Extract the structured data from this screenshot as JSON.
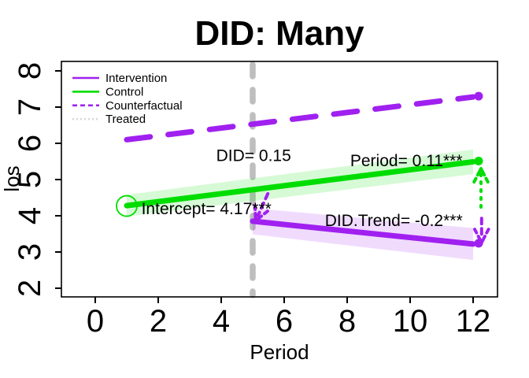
{
  "title": "DID: Many",
  "axes": {
    "x": {
      "label": "Period",
      "ticks": [
        "0",
        "2",
        "4",
        "6",
        "8",
        "10",
        "12"
      ],
      "tick_values": [
        0,
        2,
        4,
        6,
        8,
        10,
        12
      ],
      "range": [
        -0.6,
        12.8
      ]
    },
    "y": {
      "label": "los",
      "ticks": [
        "2",
        "3",
        "4",
        "5",
        "6",
        "7",
        "8"
      ],
      "tick_values": [
        2,
        3,
        4,
        5,
        6,
        7,
        8
      ],
      "range": [
        1.75,
        8.1
      ]
    }
  },
  "legend": {
    "position": "top-left",
    "items": [
      {
        "label": "Intervention",
        "color": "#A020F0",
        "style": "solid"
      },
      {
        "label": "Control",
        "color": "#00DD00",
        "style": "solid"
      },
      {
        "label": "Counterfactual",
        "color": "#A020F0",
        "style": "dashed"
      },
      {
        "label": "Treated",
        "color": "#D8D8D8",
        "style": "dotted"
      }
    ]
  },
  "chart_data": {
    "type": "line",
    "title": "DID: Many",
    "xlabel": "Period",
    "ylabel": "los",
    "xlim": [
      -0.6,
      12.8
    ],
    "ylim": [
      1.75,
      8.1
    ],
    "grid": false,
    "vline": {
      "x": 5,
      "color": "#BEBEBE",
      "style": "dashed"
    },
    "series": [
      {
        "name": "Counterfactual",
        "color": "#A020F0",
        "style": "dashed",
        "width": 7,
        "x": [
          1,
          12
        ],
        "y": [
          6.1,
          7.28
        ]
      },
      {
        "name": "Control",
        "color": "#00DD00",
        "style": "solid",
        "width": 7,
        "x": [
          1,
          12
        ],
        "y": [
          4.28,
          5.49
        ],
        "band": {
          "color": "rgba(0,221,0,0.16)",
          "half_width": [
            0.3,
            0.34
          ]
        }
      },
      {
        "name": "Intervention",
        "color": "#A020F0",
        "style": "solid",
        "width": 7,
        "x": [
          5,
          12
        ],
        "y": [
          3.85,
          3.22
        ],
        "band": {
          "color": "rgba(160,32,240,0.16)",
          "half_width": [
            0.36,
            0.44
          ]
        }
      }
    ],
    "intercept_marker": {
      "x": 1,
      "y": 4.27,
      "r": 13,
      "color": "#00DD00"
    },
    "annotations": [
      {
        "text": "DID= 0.15",
        "x": 5.03,
        "y": 5.66
      },
      {
        "text": "Period= 0.11***",
        "x": 9.88,
        "y": 5.52
      },
      {
        "text": "Intercept= 4.17***",
        "x": 3.53,
        "y": 4.2
      },
      {
        "text": "DID.Trend= -0.2***",
        "x": 9.48,
        "y": 3.87
      }
    ],
    "arrows": [
      {
        "color": "#00DD00",
        "dash": "dotted",
        "from": [
          12.25,
          4.24
        ],
        "tip": [
          12.25,
          5.3
        ]
      },
      {
        "color": "#A020F0",
        "dash": "dashed",
        "from": [
          12.27,
          3.93
        ],
        "tip": [
          12.27,
          3.26
        ]
      },
      {
        "color": "#A020F0",
        "dash": "dashed",
        "from": [
          5.48,
          4.61
        ],
        "tip": [
          5.1,
          3.87
        ]
      }
    ],
    "estimates": {
      "DID": 0.15,
      "Period": 0.11,
      "Intercept": 4.17,
      "DID.Trend": -0.2
    }
  }
}
